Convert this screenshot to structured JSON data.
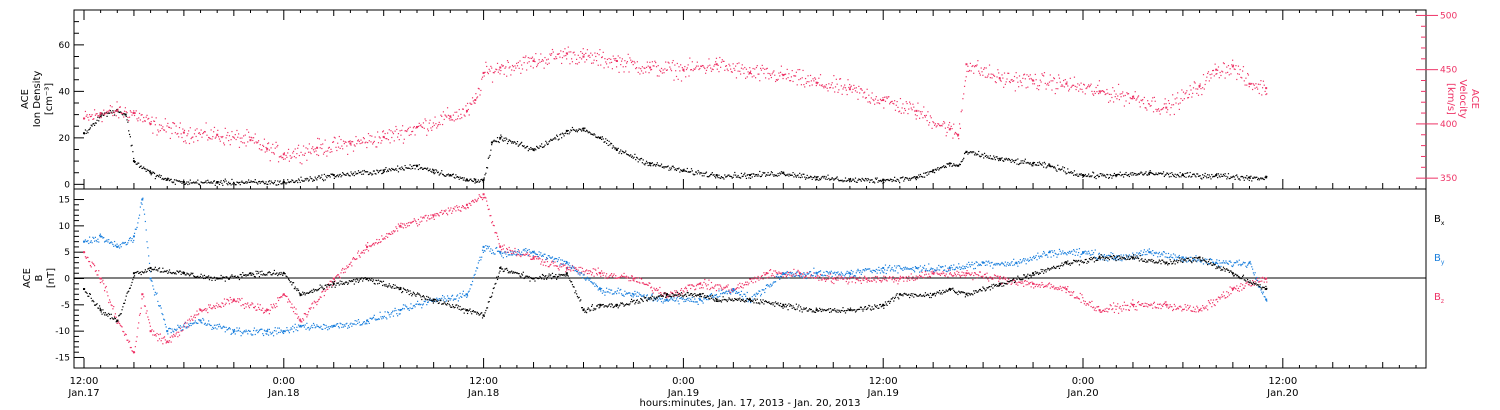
{
  "xaxis": {
    "title": "hours:minutes, Jan. 17, 2013 - Jan. 20, 2013",
    "range_hours": [
      -0.6,
      80.6
    ],
    "ticks": [
      {
        "h": 0,
        "time": "12:00",
        "date": "Jan.17"
      },
      {
        "h": 12,
        "time": "0:00",
        "date": "Jan.18"
      },
      {
        "h": 24,
        "time": "12:00",
        "date": "Jan.18"
      },
      {
        "h": 36,
        "time": "0:00",
        "date": "Jan.19"
      },
      {
        "h": 48,
        "time": "12:00",
        "date": "Jan.19"
      },
      {
        "h": 60,
        "time": "0:00",
        "date": "Jan.20"
      },
      {
        "h": 72,
        "time": "12:00",
        "date": "Jan.20"
      }
    ]
  },
  "panel1": {
    "left_label": [
      "ACE",
      "Ion Density",
      "[cm⁻³]"
    ],
    "right_label": [
      "ACE",
      "Velocity",
      "[km/s]"
    ],
    "left_ticks": [
      "0",
      "20",
      "40",
      "60"
    ],
    "right_ticks": [
      "350",
      "400",
      "450",
      "500"
    ],
    "density_color": "#000000",
    "velocity_color": "#ee3366"
  },
  "panel2": {
    "left_label": [
      "ACE",
      "B",
      "[nT]"
    ],
    "ticks": [
      "-15",
      "-10",
      "-5",
      "0",
      "5",
      "10",
      "15"
    ],
    "legend": [
      {
        "main": "B",
        "sub": "x",
        "color": "#000000"
      },
      {
        "main": "B",
        "sub": "y",
        "color": "#1a7fdd"
      },
      {
        "main": "B",
        "sub": "z",
        "color": "#ee3366"
      }
    ]
  },
  "chart_data": [
    {
      "type": "scatter",
      "title": "",
      "xlabel": "hours:minutes, Jan. 17, 2013 - Jan. 20, 2013",
      "x_unit": "hours since 12:00 Jan.17 2013",
      "ylabel": "ACE Ion Density [cm⁻³]",
      "ylim": [
        -2,
        75
      ],
      "y2label": "ACE Velocity [km/s]",
      "y2lim": [
        340,
        505
      ],
      "series": [
        {
          "name": "Ion Density",
          "axis": "left",
          "color": "#000000",
          "x": [
            0,
            1,
            2,
            2.5,
            3,
            4,
            5,
            6,
            8,
            12,
            15,
            18,
            20,
            21,
            22,
            23,
            23.5,
            24,
            24.5,
            25,
            27,
            29,
            30,
            31,
            32,
            34,
            36,
            38,
            40,
            42,
            44,
            46,
            48,
            50,
            51,
            52,
            52.5,
            53,
            55,
            57,
            58,
            60,
            62,
            64,
            66,
            68,
            70,
            71
          ],
          "y": [
            22,
            30,
            32,
            30,
            10,
            5,
            2,
            1,
            1,
            1,
            4,
            6,
            8,
            6,
            4,
            2,
            2,
            2,
            18,
            20,
            15,
            23,
            24,
            20,
            15,
            9,
            6,
            4,
            4,
            5,
            3,
            2,
            2,
            3,
            6,
            9,
            8,
            14,
            11,
            9,
            8,
            4,
            4,
            5,
            4,
            4,
            3,
            3
          ]
        },
        {
          "name": "Velocity",
          "axis": "right",
          "color": "#ee3366",
          "x": [
            0,
            1,
            2,
            3,
            4,
            6,
            8,
            10,
            11,
            12,
            14,
            16,
            18,
            20,
            22,
            23,
            23.5,
            24,
            25,
            27,
            29,
            30,
            32,
            34,
            36,
            38,
            40,
            42,
            44,
            46,
            48,
            50,
            52,
            52.5,
            53,
            55,
            57,
            59,
            61,
            63,
            65,
            67,
            68,
            69,
            70,
            71
          ],
          "y": [
            405,
            410,
            412,
            410,
            400,
            392,
            390,
            385,
            377,
            372,
            378,
            382,
            388,
            397,
            407,
            412,
            422,
            447,
            452,
            458,
            465,
            462,
            458,
            452,
            450,
            455,
            447,
            445,
            438,
            432,
            422,
            412,
            395,
            390,
            455,
            442,
            440,
            437,
            430,
            425,
            415,
            435,
            450,
            453,
            437,
            433
          ]
        }
      ]
    },
    {
      "type": "scatter",
      "title": "",
      "xlabel": "hours:minutes, Jan. 17, 2013 - Jan. 20, 2013",
      "x_unit": "hours since 12:00 Jan.17 2013",
      "ylabel": "ACE B [nT]",
      "ylim": [
        -17,
        17
      ],
      "series": [
        {
          "name": "Bx",
          "color": "#000000",
          "x": [
            0,
            1,
            2,
            3,
            4,
            6,
            8,
            10,
            12,
            13,
            15,
            17,
            19,
            21,
            23,
            24,
            25,
            27,
            29,
            30,
            31,
            32,
            35,
            37,
            38,
            40,
            42,
            44,
            46,
            48,
            49,
            51,
            52,
            53,
            55,
            57,
            59,
            61,
            63,
            65,
            67,
            69,
            71
          ],
          "y": [
            -2,
            -6,
            -8,
            1,
            2,
            1,
            0,
            1,
            1,
            -3,
            -1,
            0,
            -2,
            -4,
            -6,
            -7,
            2,
            0,
            1,
            -6,
            -5,
            -5,
            -3,
            -3,
            -4,
            -4,
            -5,
            -6,
            -6,
            -5,
            -3,
            -3,
            -2,
            -3,
            -1,
            1,
            3,
            4,
            4,
            3,
            4,
            1,
            -2
          ]
        },
        {
          "name": "By",
          "color": "#1a7fdd",
          "x": [
            0,
            1,
            2,
            3,
            3.5,
            4,
            5,
            7,
            9,
            11,
            12,
            13,
            15,
            17,
            19,
            21,
            23,
            24,
            25,
            27,
            29,
            31,
            33,
            35,
            37,
            39,
            40,
            42,
            44,
            46,
            48,
            50,
            52,
            54,
            56,
            58,
            60,
            62,
            64,
            66,
            68,
            70,
            71
          ],
          "y": [
            7,
            8,
            6,
            8,
            15,
            0,
            -10,
            -8,
            -10,
            -10,
            -10,
            -9,
            -9,
            -8,
            -6,
            -4,
            -3,
            6,
            5,
            5,
            3,
            -2,
            -3,
            -4,
            -4,
            -2,
            -4,
            1,
            1,
            1,
            2,
            2,
            2,
            3,
            3,
            5,
            5,
            4,
            5,
            4,
            3,
            3,
            -4
          ]
        },
        {
          "name": "Bz",
          "color": "#ee3366",
          "x": [
            0,
            1,
            2,
            3,
            3.5,
            4,
            5,
            7,
            9,
            11,
            12,
            13,
            15,
            17,
            19,
            21,
            23,
            24,
            25,
            27,
            29,
            31,
            33,
            35,
            37,
            39,
            41,
            43,
            45,
            47,
            49,
            51,
            53,
            55,
            57,
            59,
            61,
            63,
            65,
            67,
            69,
            71
          ],
          "y": [
            5,
            0,
            -8,
            -14,
            -3,
            -10,
            -12,
            -6,
            -4,
            -6,
            -3,
            -8,
            0,
            6,
            10,
            12,
            14,
            16,
            6,
            4,
            2,
            1,
            0,
            -3,
            -1,
            -2,
            1,
            1,
            0,
            0,
            0,
            1,
            1,
            0,
            -1,
            -2,
            -6,
            -5,
            -5,
            -6,
            -2,
            0
          ]
        }
      ]
    }
  ]
}
